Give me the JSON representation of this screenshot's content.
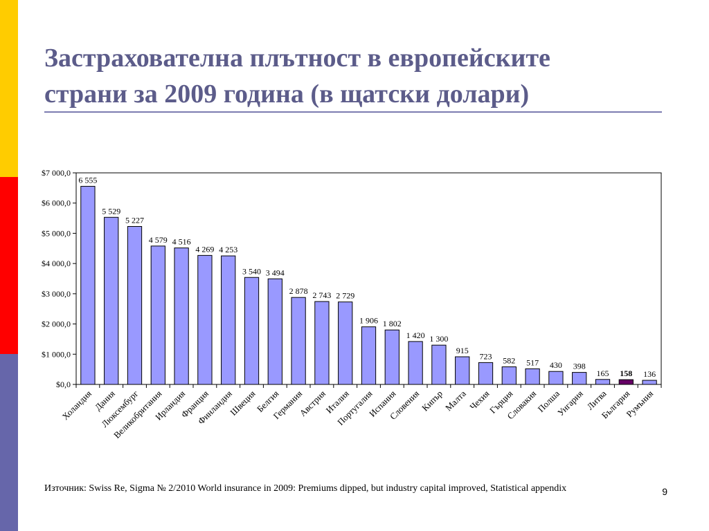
{
  "slide": {
    "title_line1": "Застрахователна плътност в европейските",
    "title_line2": "страни за 2009 година (в щатски долари)",
    "source": "Източник: Swiss Re, Sigma № 2/2010 World insurance in 2009: Premiums dipped, but industry capital improved, Statistical appendix",
    "page_number": "9"
  },
  "colors": {
    "bar": "#9999ff",
    "bar_highlight": "#660066",
    "title": "#5c5c8a",
    "stripe_top": "#ffcc00",
    "stripe_mid": "#ff0000",
    "stripe_bottom": "#6666aa"
  },
  "chart_data": {
    "type": "bar",
    "categories": [
      "Холандия",
      "Дания",
      "Люксембург",
      "Великобритания",
      "Ирландия",
      "Франция",
      "Финландия",
      "Швеция",
      "Белгия",
      "Германия",
      "Австрия",
      "Италия",
      "Португалия",
      "Испания",
      "Словения",
      "Кипър",
      "Малта",
      "Чехия",
      "Гърция",
      "Словакия",
      "Полша",
      "Унгария",
      "Литва",
      "България",
      "Румъния"
    ],
    "values": [
      6555,
      5529,
      5227,
      4579,
      4516,
      4269,
      4253,
      3540,
      3494,
      2878,
      2743,
      2729,
      1906,
      1802,
      1420,
      1300,
      915,
      723,
      582,
      517,
      430,
      398,
      165,
      158,
      136
    ],
    "data_labels": [
      "6 555",
      "5 529",
      "5 227",
      "4 579",
      "4 516",
      "4 269",
      "4 253",
      "3 540",
      "3 494",
      "2 878",
      "2 743",
      "2 729",
      "1 906",
      "1 802",
      "1 420",
      "1 300",
      "915",
      "723",
      "582",
      "517",
      "430",
      "398",
      "165",
      "158",
      "136"
    ],
    "highlight": "България",
    "ylim": [
      0,
      7000
    ],
    "yticks": [
      0,
      1000,
      2000,
      3000,
      4000,
      5000,
      6000,
      7000
    ],
    "ytick_labels": [
      "$0,0",
      "$1 000,0",
      "$2 000,0",
      "$3 000,0",
      "$4 000,0",
      "$5 000,0",
      "$6 000,0",
      "$7 000,0"
    ],
    "grid": false,
    "legend": "none"
  }
}
